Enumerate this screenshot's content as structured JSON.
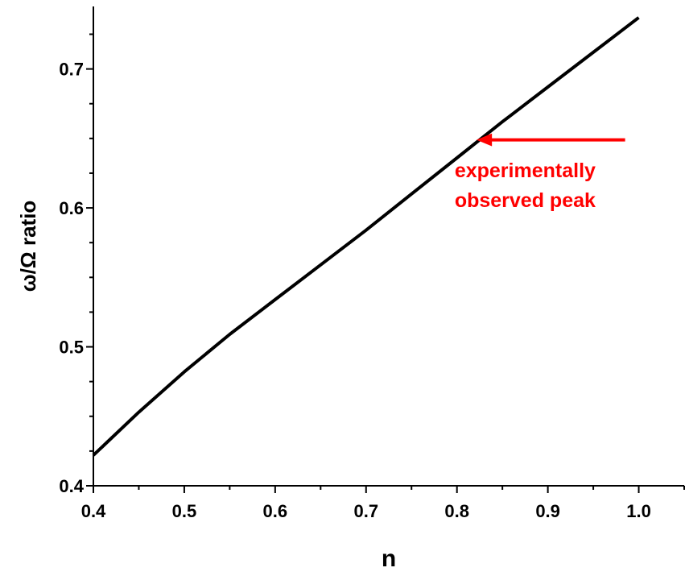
{
  "chart_data": {
    "type": "line",
    "title": "",
    "xlabel": "n",
    "ylabel": "ω/Ω ratio",
    "xlim": [
      0.4,
      1.05
    ],
    "ylim": [
      0.4,
      0.745
    ],
    "x_ticks": [
      0.4,
      0.5,
      0.6,
      0.7,
      0.8,
      0.9,
      1.0
    ],
    "x_tick_labels": [
      "0.4",
      "0.5",
      "0.6",
      "0.7",
      "0.8",
      "0.9",
      "1.0"
    ],
    "y_ticks": [
      0.4,
      0.5,
      0.6,
      0.7
    ],
    "y_tick_labels": [
      "0.4",
      "0.5",
      "0.6",
      "0.7"
    ],
    "grid": false,
    "legend": "none",
    "line_color": "#000000",
    "annotation_color": "#ff0000",
    "series": [
      {
        "x": [
          0.4,
          0.45,
          0.5,
          0.55,
          0.6,
          0.65,
          0.7,
          0.75,
          0.8,
          0.85,
          0.9,
          0.95,
          1.0
        ],
        "y": [
          0.422,
          0.453,
          0.482,
          0.509,
          0.534,
          0.559,
          0.584,
          0.61,
          0.636,
          0.662,
          0.687,
          0.712,
          0.737
        ]
      }
    ],
    "annotation": {
      "lines": [
        "experimentally",
        "observed peak"
      ],
      "arrow_from": {
        "x": 0.985,
        "y": 0.649
      },
      "arrow_to": {
        "x": 0.83,
        "y": 0.649
      },
      "text_position": {
        "x": 0.875,
        "y": 0.622
      }
    }
  }
}
